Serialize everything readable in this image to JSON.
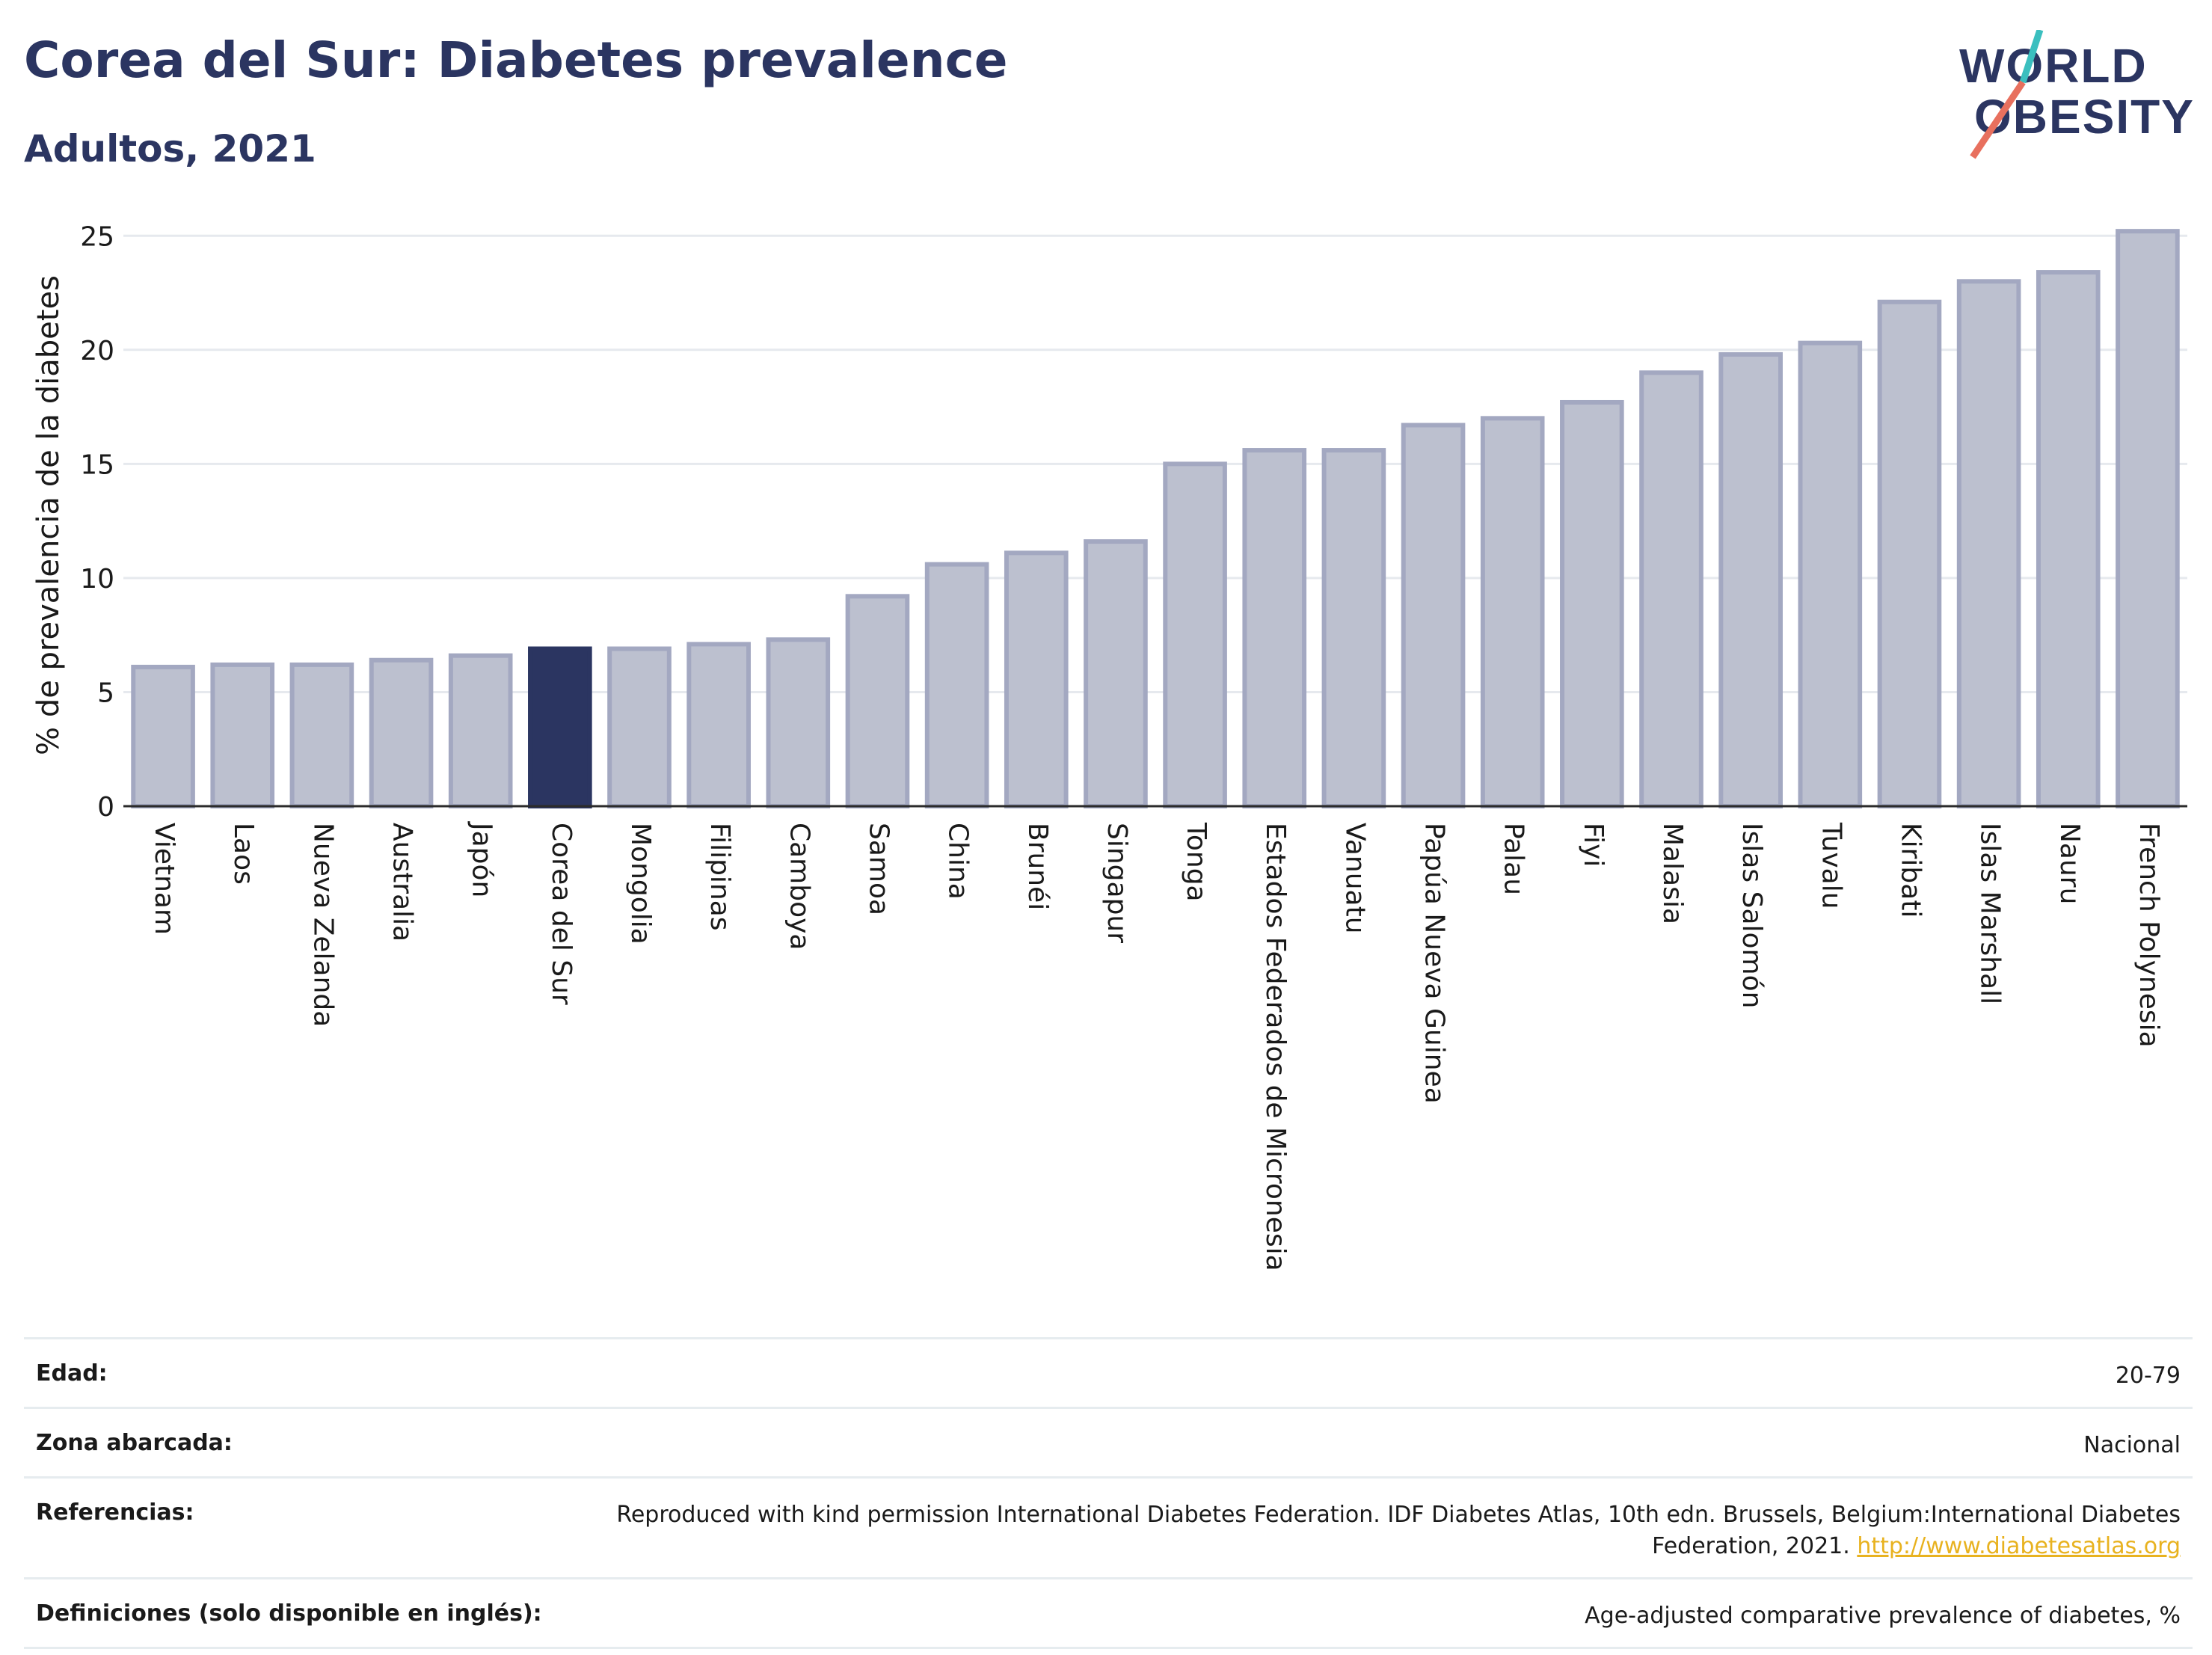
{
  "header": {
    "title": "Corea del Sur: Diabetes prevalence",
    "subtitle": "Adultos, 2021"
  },
  "logo": {
    "line1": "WORLD",
    "line2": "OBESITY",
    "accent_teal": "#3bbfbf",
    "accent_coral": "#e8705e"
  },
  "colors": {
    "bar": "#bcc0cf",
    "bar_stroke": "#a3a8c1",
    "highlight": "#2b3561",
    "grid": "#e6e9ee"
  },
  "chart_data": {
    "type": "bar",
    "title": "Corea del Sur: Diabetes prevalence",
    "subtitle": "Adultos, 2021",
    "xlabel": "",
    "ylabel": "% de prevalencia de la diabetes",
    "ylim": [
      0,
      25.5
    ],
    "yticks": [
      0,
      5,
      10,
      15,
      20,
      25
    ],
    "grid": true,
    "highlight": "Corea del Sur",
    "categories": [
      "Vietnam",
      "Laos",
      "Nueva Zelanda",
      "Australia",
      "Japón",
      "Corea del Sur",
      "Mongolia",
      "Filipinas",
      "Camboya",
      "Samoa",
      "China",
      "Brunéi",
      "Singapur",
      "Tonga",
      "Estados Federados de Micronesia",
      "Vanuatu",
      "Papúa Nueva Guinea",
      "Palau",
      "Fiyi",
      "Malasia",
      "Islas Salomón",
      "Tuvalu",
      "Kiribati",
      "Islas Marshall",
      "Nauru",
      "French Polynesia"
    ],
    "values": [
      6.1,
      6.2,
      6.2,
      6.4,
      6.6,
      6.9,
      6.9,
      7.1,
      7.3,
      9.2,
      10.6,
      11.1,
      11.6,
      15.0,
      15.6,
      15.6,
      16.7,
      17.0,
      17.7,
      19.0,
      19.8,
      20.3,
      22.1,
      23.0,
      23.4,
      25.2
    ]
  },
  "meta": [
    {
      "key": "Edad:",
      "value": "20-79"
    },
    {
      "key": "Zona abarcada:",
      "value": "Nacional"
    },
    {
      "key": "Referencias:",
      "value": "Reproduced with kind permission International Diabetes Federation.  IDF Diabetes Atlas, 10th edn. Brussels, Belgium:International Diabetes Federation, 2021.",
      "link": "http://www.diabetesatlas.org"
    },
    {
      "key": "Definiciones (solo disponible en inglés):",
      "value": "Age-adjusted comparative prevalence of diabetes, %"
    }
  ]
}
